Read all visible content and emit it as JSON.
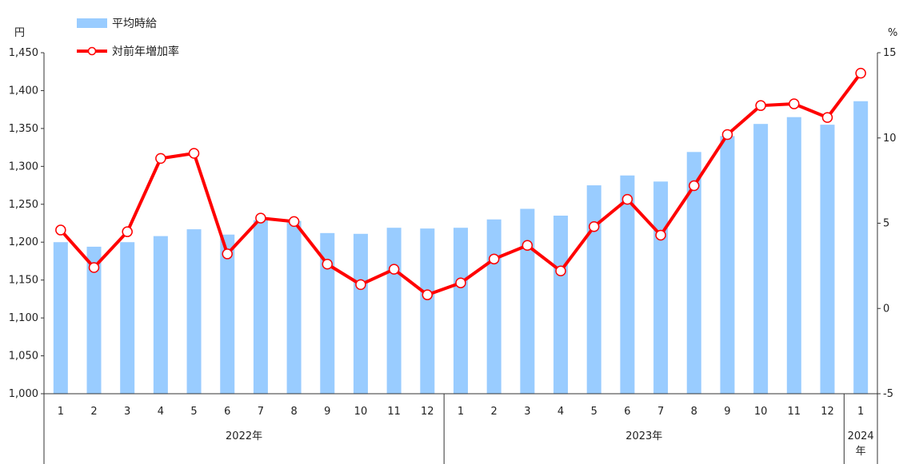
{
  "chart_data": {
    "type": "bar",
    "categories": [
      "1",
      "2",
      "3",
      "4",
      "5",
      "6",
      "7",
      "8",
      "9",
      "10",
      "11",
      "12",
      "1",
      "2",
      "3",
      "4",
      "5",
      "6",
      "7",
      "8",
      "9",
      "10",
      "11",
      "12",
      "1"
    ],
    "category_groups": [
      {
        "label": "2022年",
        "count": 12
      },
      {
        "label": "2023年",
        "count": 12
      },
      {
        "label_lines": [
          "2024",
          "年"
        ],
        "count": 1
      }
    ],
    "series": [
      {
        "name": "平均時給",
        "type": "bar",
        "axis": "left",
        "color": "#99ccff",
        "values": [
          1200,
          1194,
          1200,
          1208,
          1217,
          1210,
          1229,
          1228,
          1212,
          1211,
          1219,
          1218,
          1219,
          1230,
          1244,
          1235,
          1275,
          1288,
          1280,
          1319,
          1340,
          1356,
          1365,
          1355,
          1386
        ]
      },
      {
        "name": "対前年増加率",
        "type": "line",
        "axis": "right",
        "color": "#ff0000",
        "values": [
          4.6,
          2.4,
          4.5,
          8.8,
          9.1,
          3.2,
          5.3,
          5.1,
          2.6,
          1.4,
          2.3,
          0.8,
          1.5,
          2.9,
          3.7,
          2.2,
          4.8,
          6.4,
          4.3,
          7.2,
          10.2,
          11.9,
          12.0,
          11.2,
          13.8
        ]
      }
    ],
    "yaxis_left": {
      "unit": "円",
      "min": 1000,
      "max": 1450,
      "step": 50
    },
    "yaxis_right": {
      "unit": "%",
      "min": -5,
      "max": 15,
      "step": 5
    },
    "legend": "top-left",
    "grid": false
  }
}
